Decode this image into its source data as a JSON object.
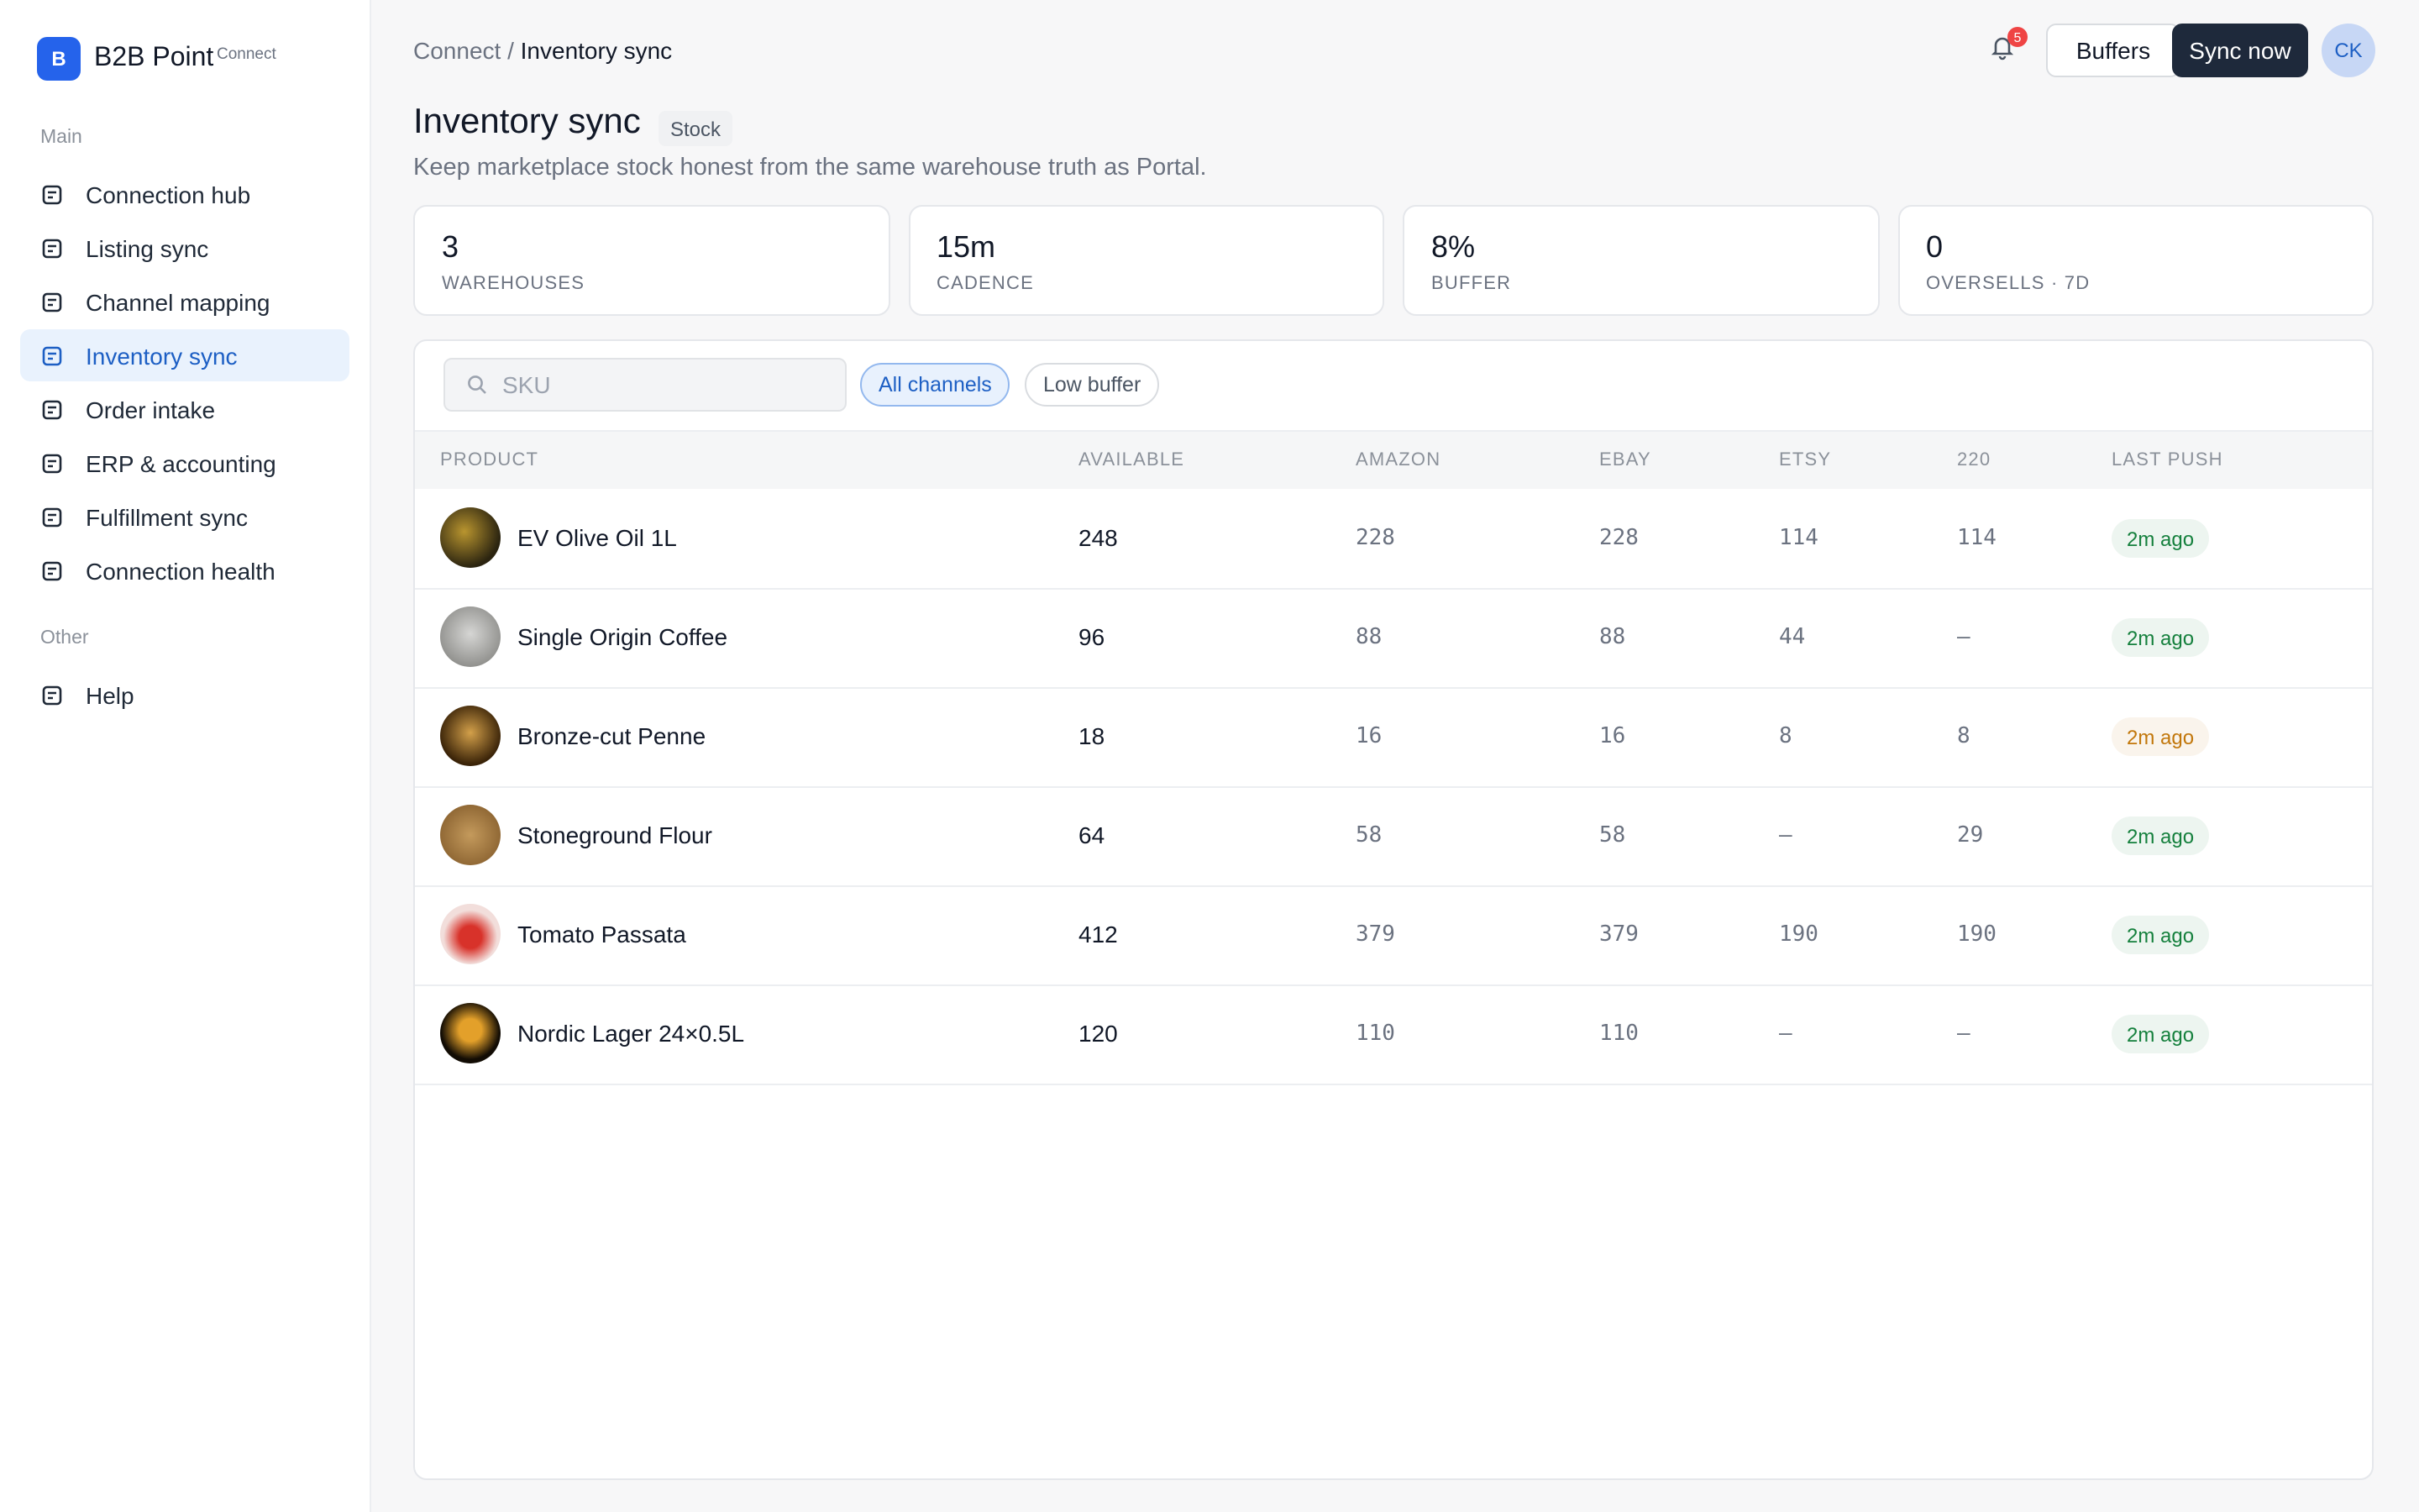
{
  "sidebar": {
    "brand": "B2B Point",
    "brand_tag": "Connect",
    "logo": "B",
    "sections": [
      {
        "label": "Main",
        "items": [
          "Connection hub",
          "Listing sync",
          "Channel mapping",
          "Inventory sync",
          "Order intake",
          "ERP & accounting",
          "Fulfillment sync",
          "Connection health"
        ]
      },
      {
        "label": "Other",
        "items": [
          "Help"
        ]
      }
    ],
    "active": "Inventory sync"
  },
  "header": {
    "breadcrumb_parent": "Connect /",
    "breadcrumb_current": "Inventory sync",
    "notifications": "5",
    "buttons": [
      "Buffers",
      "Sync now"
    ],
    "avatar": "CK"
  },
  "page": {
    "title": "Inventory sync",
    "tag": "Stock",
    "subtitle": "Keep marketplace stock honest from the same warehouse truth as Portal."
  },
  "stats": [
    {
      "value": "3",
      "label": "Warehouses"
    },
    {
      "value": "15m",
      "label": "Cadence"
    },
    {
      "value": "8%",
      "label": "Buffer"
    },
    {
      "value": "0",
      "label": "Oversells · 7d"
    }
  ],
  "filters": {
    "search_placeholder": "SKU",
    "chips": [
      "All channels",
      "Low buffer"
    ],
    "active_chip": "All channels"
  },
  "table": {
    "columns": [
      "Product",
      "Available",
      "Amazon",
      "eBay",
      "Etsy",
      "220",
      "Last push"
    ],
    "rows": [
      {
        "product": "EV Olive Oil 1L",
        "available": 248,
        "channels": [
          228,
          228,
          114,
          114
        ],
        "last_push": "2m ago",
        "color": "#15803d"
      },
      {
        "product": "Single Origin Coffee",
        "available": 96,
        "channels": [
          88,
          88,
          44,
          "—"
        ],
        "last_push": "2m ago",
        "color": "#15803d"
      },
      {
        "product": "Bronze-cut Penne",
        "available": 18,
        "channels": [
          16,
          16,
          8,
          8
        ],
        "last_push": "2m ago",
        "color": "#c2770b"
      },
      {
        "product": "Stoneground Flour",
        "available": 64,
        "channels": [
          58,
          58,
          "—",
          29
        ],
        "last_push": "2m ago",
        "color": "#15803d"
      },
      {
        "product": "Tomato Passata",
        "available": 412,
        "channels": [
          379,
          379,
          190,
          190
        ],
        "last_push": "2m ago",
        "color": "#15803d"
      },
      {
        "product": "Nordic Lager 24×0.5L",
        "available": 120,
        "channels": [
          110,
          110,
          "—",
          "—"
        ],
        "last_push": "2m ago",
        "color": "#15803d"
      }
    ]
  }
}
